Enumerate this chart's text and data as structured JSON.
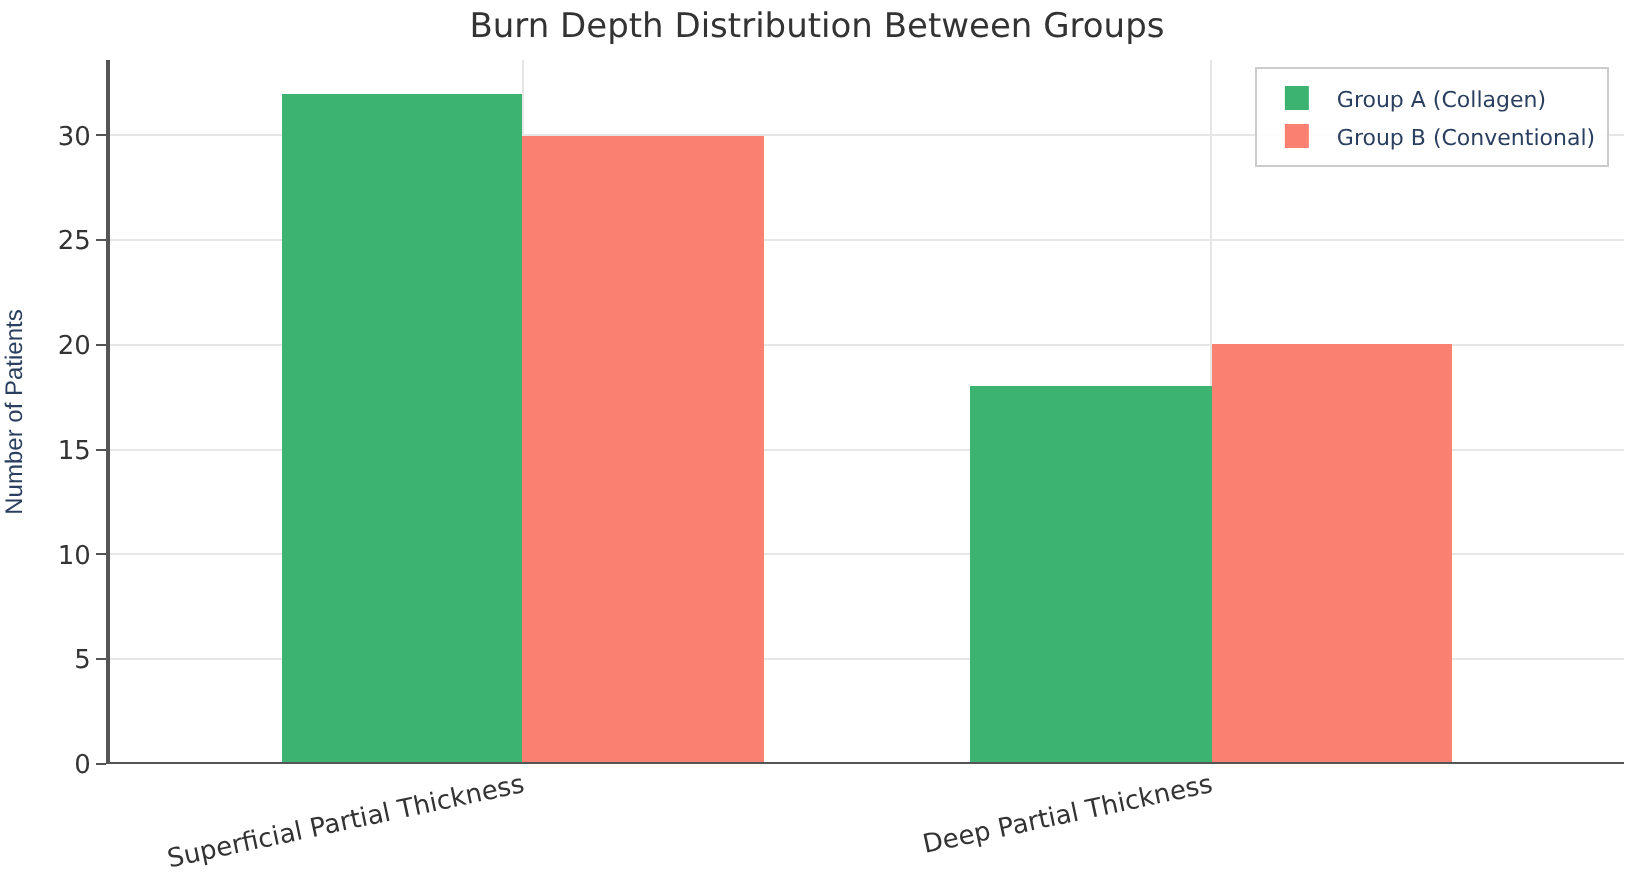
{
  "chart_data": {
    "type": "bar",
    "title": "Burn Depth Distribution Between Groups",
    "ylabel": "Number of Patients",
    "categories": [
      "Superficial Partial Thickness",
      "Deep Partial Thickness"
    ],
    "series": [
      {
        "name": "Group A (Collagen)",
        "color": "#3cb371",
        "values": [
          32,
          18
        ]
      },
      {
        "name": "Group B (Conventional)",
        "color": "#fa8072",
        "values": [
          30,
          20
        ]
      }
    ],
    "ylim": [
      0,
      33.6
    ],
    "yticks": [
      0,
      5,
      10,
      15,
      20,
      25,
      30
    ],
    "grid": true,
    "legend": "top right"
  }
}
